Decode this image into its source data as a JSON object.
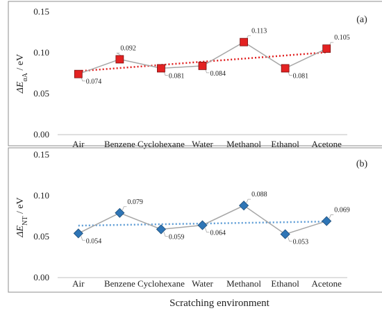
{
  "figure": {
    "xlabel": "Scratching environment"
  },
  "chart_data": [
    {
      "type": "line",
      "panel_label": "(a)",
      "ylabel_symbol": "ΔE",
      "ylabel_sub": "αA",
      "ylabel_unit": " / eV",
      "categories": [
        "Air",
        "Benzene",
        "Cyclohexane",
        "Water",
        "Methanol",
        "Ethanol",
        "Acetone"
      ],
      "yticks": [
        "0.00",
        "0.05",
        "0.10",
        "0.15"
      ],
      "ylim": [
        0,
        0.15
      ],
      "series": [
        {
          "values": [
            0.074,
            0.092,
            0.081,
            0.084,
            0.113,
            0.081,
            0.105
          ],
          "labels": [
            "0.074",
            "0.092",
            "0.081",
            "0.084",
            "0.113",
            "0.081",
            "0.105"
          ],
          "marker": "square",
          "marker_color": "#e32222",
          "line_color": "#a6a6a6",
          "trend_color": "#e02020",
          "trend": [
            0.0775,
            0.1005
          ]
        }
      ],
      "grid": false
    },
    {
      "type": "line",
      "panel_label": "(b)",
      "ylabel_symbol": "ΔE",
      "ylabel_sub": "NT",
      "ylabel_unit": " / eV",
      "categories": [
        "Air",
        "Benzene",
        "Cyclohexane",
        "Water",
        "Methanol",
        "Ethanol",
        "Acetone"
      ],
      "yticks": [
        "0.00",
        "0.05",
        "0.10",
        "0.15"
      ],
      "ylim": [
        0,
        0.15
      ],
      "series": [
        {
          "values": [
            0.054,
            0.079,
            0.059,
            0.064,
            0.088,
            0.053,
            0.069
          ],
          "labels": [
            "0.054",
            "0.079",
            "0.059",
            "0.064",
            "0.088",
            "0.053",
            "0.069"
          ],
          "marker": "diamond",
          "marker_color": "#2e75b6",
          "line_color": "#a6a6a6",
          "trend_color": "#5b9bd5",
          "trend": [
            0.0635,
            0.0685
          ]
        }
      ],
      "grid": false
    }
  ]
}
